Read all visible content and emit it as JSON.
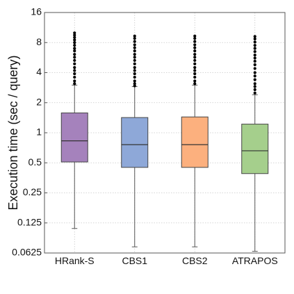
{
  "chart_data": {
    "type": "boxplot",
    "scale": "log2",
    "ylabel": "Execution time (sec / query)",
    "xlabel": "",
    "ylim": [
      0.0625,
      16
    ],
    "yticks": [
      0.0625,
      0.125,
      0.25,
      0.5,
      1,
      2,
      4,
      8,
      16
    ],
    "ytick_labels": [
      "0.0625",
      "0.125",
      "0.25",
      "0.5",
      "1",
      "2",
      "4",
      "8",
      "16"
    ],
    "grid": true,
    "categories": [
      "HRank-S",
      "CBS1",
      "CBS2",
      "ATRAPOS"
    ],
    "series": [
      {
        "category": "HRank-S",
        "color": "#a582bc",
        "whisker_low": 0.11,
        "q1": 0.51,
        "median": 0.83,
        "q3": 1.58,
        "whisker_high": 3.0,
        "outliers": [
          3.1,
          3.3,
          3.6,
          3.9,
          4.2,
          4.5,
          4.9,
          5.3,
          5.7,
          6.1,
          6.6,
          7.0,
          7.5,
          8.0,
          8.5,
          9.0,
          9.5,
          10.0
        ]
      },
      {
        "category": "CBS1",
        "color": "#8ea8d8",
        "whisker_low": 0.072,
        "q1": 0.45,
        "median": 0.76,
        "q3": 1.42,
        "whisker_high": 2.9,
        "outliers": [
          2.95,
          3.1,
          3.3,
          3.6,
          3.9,
          4.2,
          4.5,
          4.9,
          5.3,
          5.7,
          6.1,
          6.6,
          7.1,
          7.6,
          8.2,
          8.8,
          9.3
        ]
      },
      {
        "category": "CBS2",
        "color": "#fcb07e",
        "whisker_low": 0.072,
        "q1": 0.45,
        "median": 0.76,
        "q3": 1.44,
        "whisker_high": 3.0,
        "outliers": [
          3.1,
          3.3,
          3.6,
          3.9,
          4.2,
          4.5,
          4.9,
          5.3,
          5.7,
          6.1,
          6.6,
          7.1,
          7.6,
          8.2,
          8.8,
          9.3
        ]
      },
      {
        "category": "ATRAPOS",
        "color": "#a5cf8c",
        "whisker_low": 0.065,
        "q1": 0.39,
        "median": 0.66,
        "q3": 1.22,
        "whisker_high": 2.4,
        "outliers": [
          2.5,
          2.7,
          2.9,
          3.1,
          3.4,
          3.7,
          4.0,
          4.4,
          4.8,
          5.2,
          5.6,
          6.0,
          6.5,
          7.0,
          7.5,
          8.1,
          8.7,
          9.2
        ]
      }
    ]
  }
}
